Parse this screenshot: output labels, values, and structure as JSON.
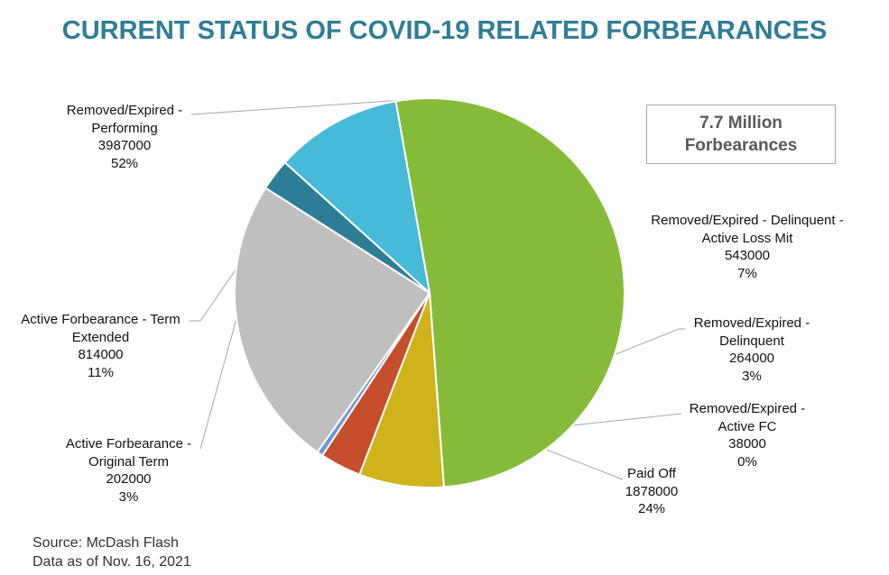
{
  "chart_data": {
    "type": "pie",
    "title": "CURRENT STATUS OF COVID-19 RELATED FORBEARANCES",
    "total_label": [
      "7.7 Million",
      "Forbearances"
    ],
    "slices": [
      {
        "name_lines": [
          "Removed/Expired -",
          "Performing"
        ],
        "value": 3987000,
        "value_label": "3987000",
        "percent_label": "52%",
        "color": "#86bb3a"
      },
      {
        "name_lines": [
          "Removed/Expired - Delinquent -",
          "Active Loss Mit"
        ],
        "value": 543000,
        "value_label": "543000",
        "percent_label": "7%",
        "color": "#cfb31b"
      },
      {
        "name_lines": [
          "Removed/Expired -",
          "Delinquent"
        ],
        "value": 264000,
        "value_label": "264000",
        "percent_label": "3%",
        "color": "#c54e2c"
      },
      {
        "name_lines": [
          "Removed/Expired -",
          "Active FC"
        ],
        "value": 38000,
        "value_label": "38000",
        "percent_label": "0%",
        "color": "#6f96d6"
      },
      {
        "name_lines": [
          "Paid Off"
        ],
        "value": 1878000,
        "value_label": "1878000",
        "percent_label": "24%",
        "color": "#bfbfbf"
      },
      {
        "name_lines": [
          "Active Forbearance -",
          "Original Term"
        ],
        "value": 202000,
        "value_label": "202000",
        "percent_label": "3%",
        "color": "#2e7d96"
      },
      {
        "name_lines": [
          "Active Forbearance - Term",
          "Extended"
        ],
        "value": 814000,
        "value_label": "814000",
        "percent_label": "11%",
        "color": "#46bad8"
      }
    ]
  },
  "footer": {
    "source": "Source: McDash Flash",
    "date": "Data as of Nov. 16, 2021"
  }
}
